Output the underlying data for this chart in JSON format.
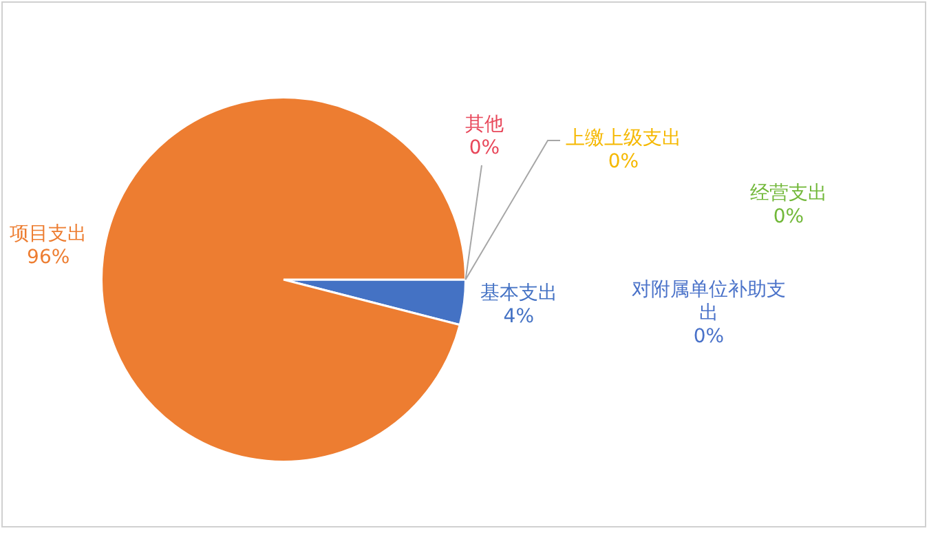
{
  "chart_data": {
    "type": "pie",
    "categories": [
      "基本支出",
      "项目支出",
      "其他",
      "上缴上级支出",
      "经营支出",
      "对附属单位补助支出"
    ],
    "values": [
      4,
      96,
      0,
      0,
      0,
      0
    ],
    "colors": [
      "#4472c4",
      "#ed7d31",
      "#e8475a",
      "#f5b800",
      "#72b83a",
      "#4a72c9"
    ],
    "value_labels": [
      "4%",
      "96%",
      "0%",
      "0%",
      "0%",
      "0%"
    ],
    "legend": false
  }
}
